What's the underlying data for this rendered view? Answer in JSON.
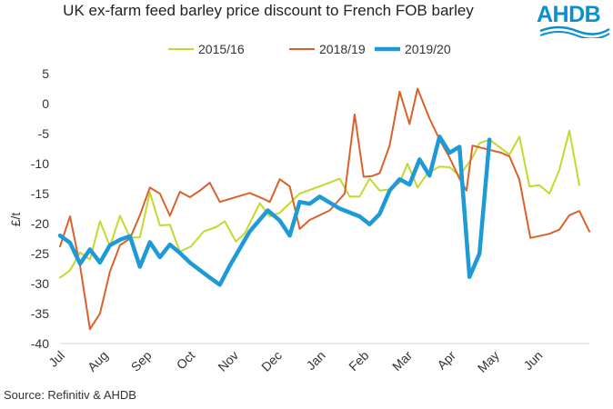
{
  "chart_data": {
    "type": "line",
    "title": "UK ex-farm feed barley price discount to French FOB barley",
    "xlabel": "",
    "ylabel": "£/t",
    "ylim": [
      -40,
      5
    ],
    "yticks": [
      5,
      0,
      -5,
      -10,
      -15,
      -20,
      -25,
      -30,
      -35,
      -40
    ],
    "xlim": [
      0,
      50
    ],
    "x_tick_labels": [
      {
        "label": "Jul",
        "x": 0
      },
      {
        "label": "Aug",
        "x": 4.35
      },
      {
        "label": "Sep",
        "x": 8.7
      },
      {
        "label": "Oct",
        "x": 13.05
      },
      {
        "label": "Nov",
        "x": 17.4
      },
      {
        "label": "Dec",
        "x": 21.75
      },
      {
        "label": "Jan",
        "x": 26.1
      },
      {
        "label": "Feb",
        "x": 30.45
      },
      {
        "label": "Mar",
        "x": 34.8
      },
      {
        "label": "Apr",
        "x": 39.15
      },
      {
        "label": "May",
        "x": 43.5
      },
      {
        "label": "Jun",
        "x": 47.85
      }
    ],
    "legend": [
      "2015/16",
      "2018/19",
      "2019/20"
    ],
    "series": [
      {
        "name": "2015/16",
        "color": "#c5d82d",
        "points": [
          [
            0,
            -29
          ],
          [
            1,
            -27.8
          ],
          [
            2,
            -24.8
          ],
          [
            3,
            -26
          ],
          [
            4,
            -19.6
          ],
          [
            5,
            -23.8
          ],
          [
            6,
            -18.7
          ],
          [
            7,
            -22.3
          ],
          [
            8,
            -22.3
          ],
          [
            9,
            -14.8
          ],
          [
            10,
            -20.3
          ],
          [
            11,
            -20.2
          ],
          [
            12,
            -24.7
          ],
          [
            13.1,
            -23.8
          ],
          [
            14.4,
            -21.3
          ],
          [
            15.6,
            -20.6
          ],
          [
            16.5,
            -19.6
          ],
          [
            17.6,
            -23
          ],
          [
            18.5,
            -21.6
          ],
          [
            20,
            -16.6
          ],
          [
            21,
            -18.8
          ],
          [
            22,
            -18.2
          ],
          [
            24,
            -15
          ],
          [
            26.5,
            -13.5
          ],
          [
            28,
            -12.5
          ],
          [
            29,
            -15.5
          ],
          [
            30,
            -15.5
          ],
          [
            31,
            -12.5
          ],
          [
            32,
            -14.5
          ],
          [
            33,
            -14.3
          ],
          [
            34,
            -13.2
          ],
          [
            34.8,
            -10
          ],
          [
            35.8,
            -14
          ],
          [
            36.8,
            -11.6
          ],
          [
            38,
            -10.5
          ],
          [
            39,
            -10.6
          ],
          [
            40,
            -12
          ],
          [
            41.3,
            -9
          ],
          [
            42,
            -6.6
          ],
          [
            43,
            -6
          ],
          [
            45,
            -8.5
          ],
          [
            46,
            -5.5
          ],
          [
            47,
            -13.8
          ],
          [
            48,
            -13.6
          ],
          [
            49,
            -15
          ],
          [
            50,
            -11
          ],
          [
            51,
            -4.5
          ],
          [
            52,
            -13.6
          ]
        ]
      },
      {
        "name": "2018/19",
        "color": "#d9622b",
        "points": [
          [
            0,
            -23.8
          ],
          [
            1,
            -18.8
          ],
          [
            2,
            -27
          ],
          [
            3,
            -37.6
          ],
          [
            4,
            -35
          ],
          [
            5,
            -28
          ],
          [
            6,
            -23.6
          ],
          [
            7,
            -22.5
          ],
          [
            8,
            -18.6
          ],
          [
            9,
            -14
          ],
          [
            10,
            -15
          ],
          [
            11,
            -18.7
          ],
          [
            12,
            -14.7
          ],
          [
            13,
            -15.6
          ],
          [
            14,
            -14.5
          ],
          [
            15,
            -13.2
          ],
          [
            16,
            -16.4
          ],
          [
            17.4,
            -15.7
          ],
          [
            19,
            -14.9
          ],
          [
            20.4,
            -15.9
          ],
          [
            21,
            -16.4
          ],
          [
            22,
            -12.6
          ],
          [
            23,
            -13.8
          ],
          [
            24,
            -20.9
          ],
          [
            25,
            -19.4
          ],
          [
            27,
            -17.8
          ],
          [
            28.5,
            -15
          ],
          [
            29.5,
            -1.8
          ],
          [
            30.4,
            -12.2
          ],
          [
            31.2,
            -12.1
          ],
          [
            32,
            -11.6
          ],
          [
            33,
            -7
          ],
          [
            34,
            2
          ],
          [
            35,
            -3.4
          ],
          [
            35.8,
            2.5
          ],
          [
            37,
            -2.5
          ],
          [
            38,
            -6
          ],
          [
            39,
            -9
          ],
          [
            40,
            -12.5
          ],
          [
            40.7,
            -14.5
          ],
          [
            41.3,
            -7
          ],
          [
            44.2,
            -8.2
          ],
          [
            45,
            -8.8
          ],
          [
            46,
            -12.7
          ],
          [
            47.1,
            -22.4
          ],
          [
            49,
            -21.7
          ],
          [
            50,
            -21
          ],
          [
            51,
            -18.6
          ],
          [
            52,
            -17.9
          ],
          [
            53,
            -21.3
          ]
        ]
      },
      {
        "name": "2019/20",
        "color": "#1e9ad6",
        "points": [
          [
            0,
            -22
          ],
          [
            1,
            -23.2
          ],
          [
            2,
            -26.7
          ],
          [
            3,
            -24.3
          ],
          [
            4,
            -26.5
          ],
          [
            5,
            -23.6
          ],
          [
            6,
            -22.7
          ],
          [
            7,
            -22.1
          ],
          [
            8,
            -27.2
          ],
          [
            9,
            -23.1
          ],
          [
            10,
            -25.6
          ],
          [
            11,
            -23.5
          ],
          [
            12,
            -24.9
          ],
          [
            13,
            -26.5
          ],
          [
            15,
            -29
          ],
          [
            16,
            -30.2
          ],
          [
            17,
            -27
          ],
          [
            19,
            -21.3
          ],
          [
            20.8,
            -17.8
          ],
          [
            22,
            -19.5
          ],
          [
            23,
            -22
          ],
          [
            24,
            -16.4
          ],
          [
            25,
            -16.7
          ],
          [
            26,
            -15.5
          ],
          [
            28,
            -17.5
          ],
          [
            30,
            -18.8
          ],
          [
            31,
            -20.1
          ],
          [
            32,
            -18.4
          ],
          [
            33,
            -14.5
          ],
          [
            34,
            -12.6
          ],
          [
            35,
            -13.5
          ],
          [
            36,
            -9.3
          ],
          [
            37,
            -12
          ],
          [
            38,
            -5.5
          ],
          [
            39,
            -8.2
          ],
          [
            40,
            -7.2
          ],
          [
            41,
            -28.9
          ],
          [
            42,
            -25
          ],
          [
            43,
            -6
          ]
        ]
      }
    ]
  },
  "source": "Source: Refinitiv & AHDB",
  "logo": {
    "text": "AHDB",
    "color": "#0a8fd1"
  }
}
